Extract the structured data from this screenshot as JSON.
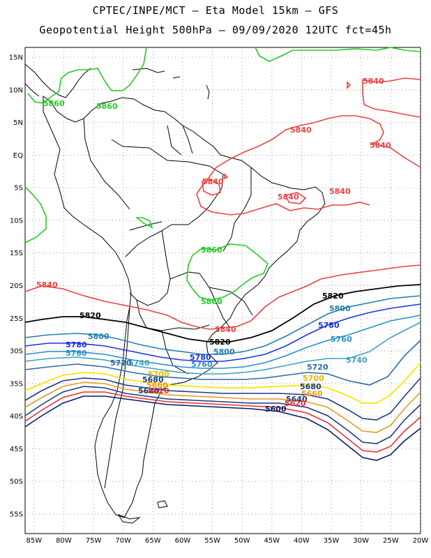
{
  "header": {
    "line1": "CPTEC/INPE/MCT –  Eta Model 15km – GFS",
    "line2": "Geopotential Height 500hPa – 09/09/2020 12UTC fct=45h"
  },
  "axes": {
    "lat_labels": [
      "15N",
      "10N",
      "5N",
      "EQ",
      "5S",
      "10S",
      "15S",
      "20S",
      "25S",
      "30S",
      "35S",
      "40S",
      "45S",
      "50S",
      "55S"
    ],
    "lon_labels": [
      "85W",
      "80W",
      "75W",
      "70W",
      "65W",
      "60W",
      "55W",
      "50W",
      "45W",
      "40W",
      "35W",
      "30W",
      "25W",
      "20W"
    ],
    "lat_values": [
      15,
      10,
      5,
      0,
      -5,
      -10,
      -15,
      -20,
      -25,
      -30,
      -35,
      -40,
      -45,
      -50,
      -55
    ],
    "lon_values": [
      -85,
      -80,
      -75,
      -70,
      -65,
      -60,
      -55,
      -50,
      -45,
      -40,
      -35,
      -30,
      -25,
      -20
    ]
  },
  "contours": {
    "c5860_color": "#22cc22",
    "c5840_color": "#ee4040",
    "c5820_color": "#000000",
    "c5800_color": "#1f7fb0",
    "c5780_color": "#1d33e6",
    "c5760_color": "#2a8ecb",
    "c5740_color": "#3aa1c5",
    "c5720_color": "#2d6aa8",
    "c5700_color": "#f5e800",
    "c5680_color": "#1c3a7e",
    "c5660_color": "#e69a20",
    "c5640_color": "#1c3a7e",
    "c5620_color": "#e83030",
    "c5600_color": "#0a1a60"
  },
  "labels": {
    "l5860": "5860",
    "l5840": "5840",
    "l5820": "5820",
    "l5800": "5800",
    "l5780": "5780",
    "l5760": "5760",
    "l5740": "5740",
    "l5720": "5720",
    "l5700": "5700",
    "l5680": "5680",
    "l5660": "5660",
    "l5640": "5640",
    "l5620": "5620",
    "l5600": "5600"
  }
}
